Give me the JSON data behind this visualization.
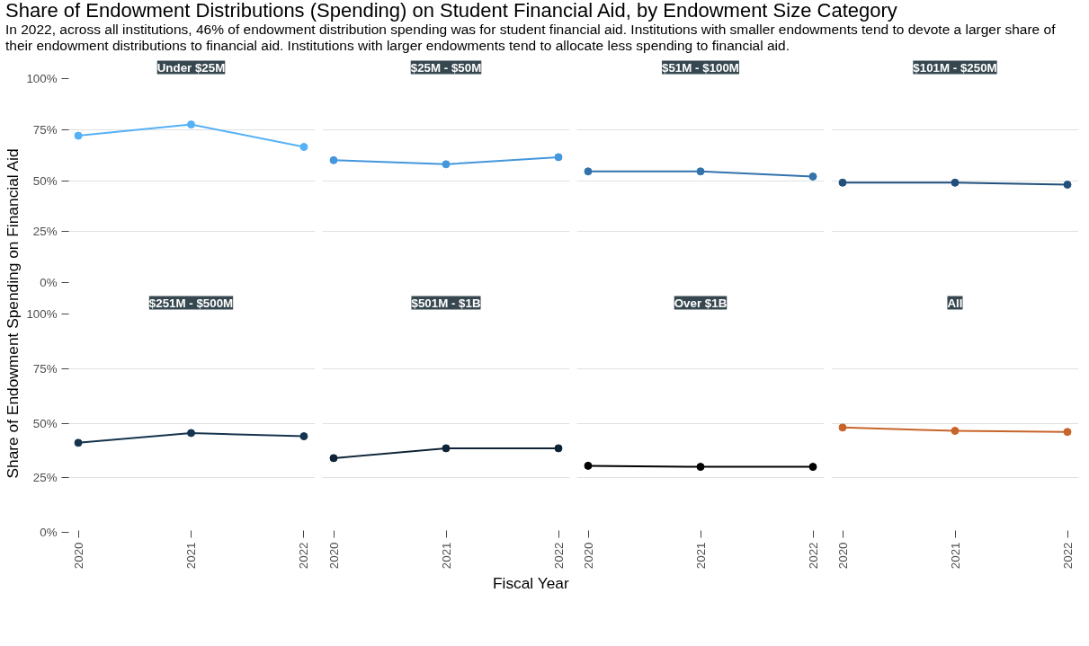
{
  "chart_data": [
    {
      "type": "other",
      "title": "Share of Endowment Distributions (Spending) on Student Financial Aid, by Endowment Size Category",
      "subtitle": "In 2022, across all institutions, 46% of endowment distribution spending was for student financial aid. Institutions with smaller endowments tend to devote a larger share of their endowment distributions to financial aid. Institutions with larger endowments tend to allocate less spending to financial aid.",
      "xlabel": "Fiscal Year",
      "ylabel": "Share of Endowment Spending on Financial Aid"
    },
    {
      "type": "line",
      "title": "Under $25M",
      "categories": [
        "2020",
        "2021",
        "2022"
      ],
      "series": [
        {
          "color": "#56b1f7",
          "values": [
            72,
            77.5,
            66.5
          ]
        }
      ],
      "ylim": [
        0,
        100
      ],
      "yticks": [
        {
          "value": 0,
          "label": "0%"
        },
        {
          "value": 25,
          "label": "25%"
        },
        {
          "value": 50,
          "label": "50%"
        },
        {
          "value": 75,
          "label": "75%"
        },
        {
          "value": 100,
          "label": "100%"
        }
      ],
      "grid": "y",
      "marker": "circle",
      "tick_labels": "y"
    },
    {
      "type": "line",
      "title": "$25M - $50M",
      "categories": [
        "2020",
        "2021",
        "2022"
      ],
      "series": [
        {
          "color": "#4497dc",
          "values": [
            60,
            58,
            61.5
          ]
        }
      ],
      "ylim": [
        0,
        100
      ],
      "yticks": [
        0,
        25,
        50,
        75,
        100
      ],
      "grid": "y",
      "marker": "circle",
      "tick_labels": false
    },
    {
      "type": "line",
      "title": "$51M - $100M",
      "categories": [
        "2020",
        "2021",
        "2022"
      ],
      "series": [
        {
          "color": "#3273ab",
          "values": [
            54.5,
            54.5,
            52
          ]
        }
      ],
      "ylim": [
        0,
        100
      ],
      "yticks": [
        0,
        25,
        50,
        75,
        100
      ],
      "grid": "y",
      "marker": "circle",
      "tick_labels": false
    },
    {
      "type": "line",
      "title": "$101M - $250M",
      "categories": [
        "2020",
        "2021",
        "2022"
      ],
      "series": [
        {
          "color": "#22507c",
          "values": [
            49,
            49,
            48
          ]
        }
      ],
      "ylim": [
        0,
        100
      ],
      "yticks": [
        0,
        25,
        50,
        75,
        100
      ],
      "grid": "y",
      "marker": "circle",
      "tick_labels": false
    },
    {
      "type": "line",
      "title": "$251M - $500M",
      "categories": [
        "2020",
        "2021",
        "2022"
      ],
      "series": [
        {
          "color": "#17344f",
          "values": [
            41,
            45.5,
            44
          ]
        }
      ],
      "ylim": [
        0,
        100
      ],
      "yticks": [
        {
          "value": 0,
          "label": "0%"
        },
        {
          "value": 25,
          "label": "25%"
        },
        {
          "value": 50,
          "label": "50%"
        },
        {
          "value": 75,
          "label": "75%"
        },
        {
          "value": 100,
          "label": "100%"
        }
      ],
      "grid": "y",
      "marker": "circle"
    },
    {
      "type": "line",
      "title": "$501M - $1B",
      "categories": [
        "2020",
        "2021",
        "2022"
      ],
      "series": [
        {
          "color": "#0e2336",
          "values": [
            34,
            38.5,
            38.5
          ]
        }
      ],
      "ylim": [
        0,
        100
      ],
      "yticks": [
        0,
        25,
        50,
        75,
        100
      ],
      "grid": "y",
      "marker": "circle",
      "tick_labels": "x"
    },
    {
      "type": "line",
      "title": "Over $1B",
      "categories": [
        "2020",
        "2021",
        "2022"
      ],
      "series": [
        {
          "color": "#000000",
          "values": [
            30.5,
            30,
            30
          ]
        }
      ],
      "ylim": [
        0,
        100
      ],
      "yticks": [
        0,
        25,
        50,
        75,
        100
      ],
      "grid": "y",
      "marker": "circle",
      "tick_labels": "x"
    },
    {
      "type": "line",
      "title": "All",
      "categories": [
        "2020",
        "2021",
        "2022"
      ],
      "series": [
        {
          "color": "#c8642a",
          "values": [
            48,
            46.5,
            46
          ]
        }
      ],
      "ylim": [
        0,
        100
      ],
      "yticks": [
        0,
        25,
        50,
        75,
        100
      ],
      "grid": "y",
      "marker": "circle",
      "tick_labels": "x"
    }
  ]
}
